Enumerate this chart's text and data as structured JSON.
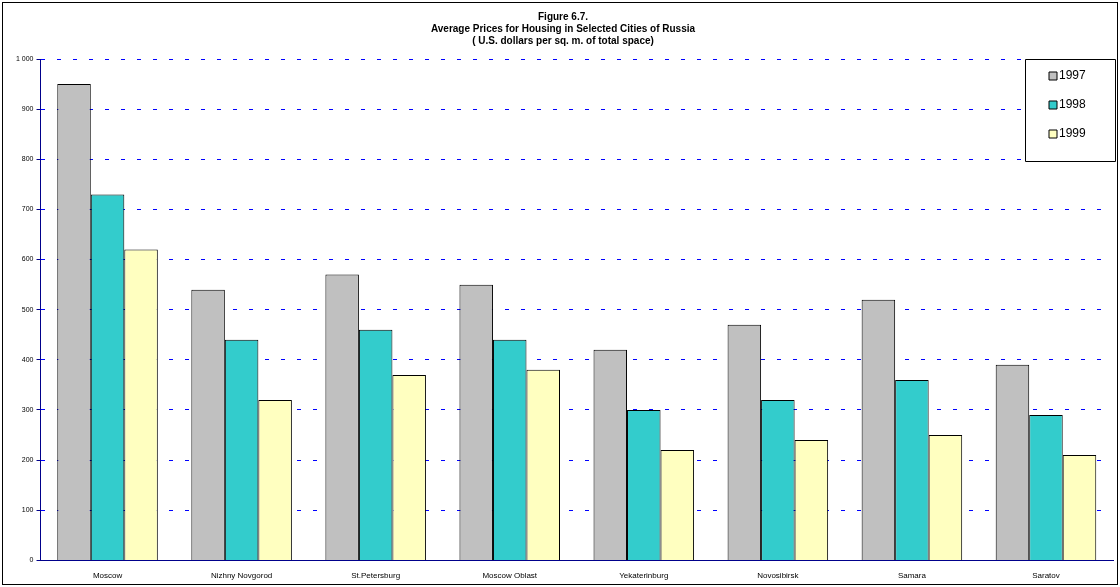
{
  "chart_data": {
    "type": "bar",
    "title": [
      "Figure 6.7.",
      "Average Prices for Housing in Selected Cities of Russia",
      "( U.S. dollars per sq. m. of total space)"
    ],
    "categories": [
      "Moscow",
      "Nizhny Novgorod",
      "St.Petersburg",
      "Moscow Oblast",
      "Yekaterinburg",
      "Novosibirsk",
      "Samara",
      "Saratov"
    ],
    "series": [
      {
        "name": "1997",
        "color": "#c0c0c0",
        "values": [
          950,
          540,
          570,
          550,
          420,
          470,
          520,
          390
        ]
      },
      {
        "name": "1998",
        "color": "#33cccc",
        "values": [
          730,
          440,
          460,
          440,
          300,
          320,
          360,
          290
        ]
      },
      {
        "name": "1999",
        "color": "#ffffc0",
        "values": [
          620,
          320,
          370,
          380,
          220,
          240,
          250,
          210
        ]
      }
    ],
    "ylim": [
      0,
      1000
    ],
    "yticks": [
      0,
      100,
      200,
      300,
      400,
      500,
      600,
      700,
      800,
      900,
      {
        "value": 1000,
        "label": "1 000"
      }
    ],
    "grid": "y",
    "legend": "top right"
  }
}
